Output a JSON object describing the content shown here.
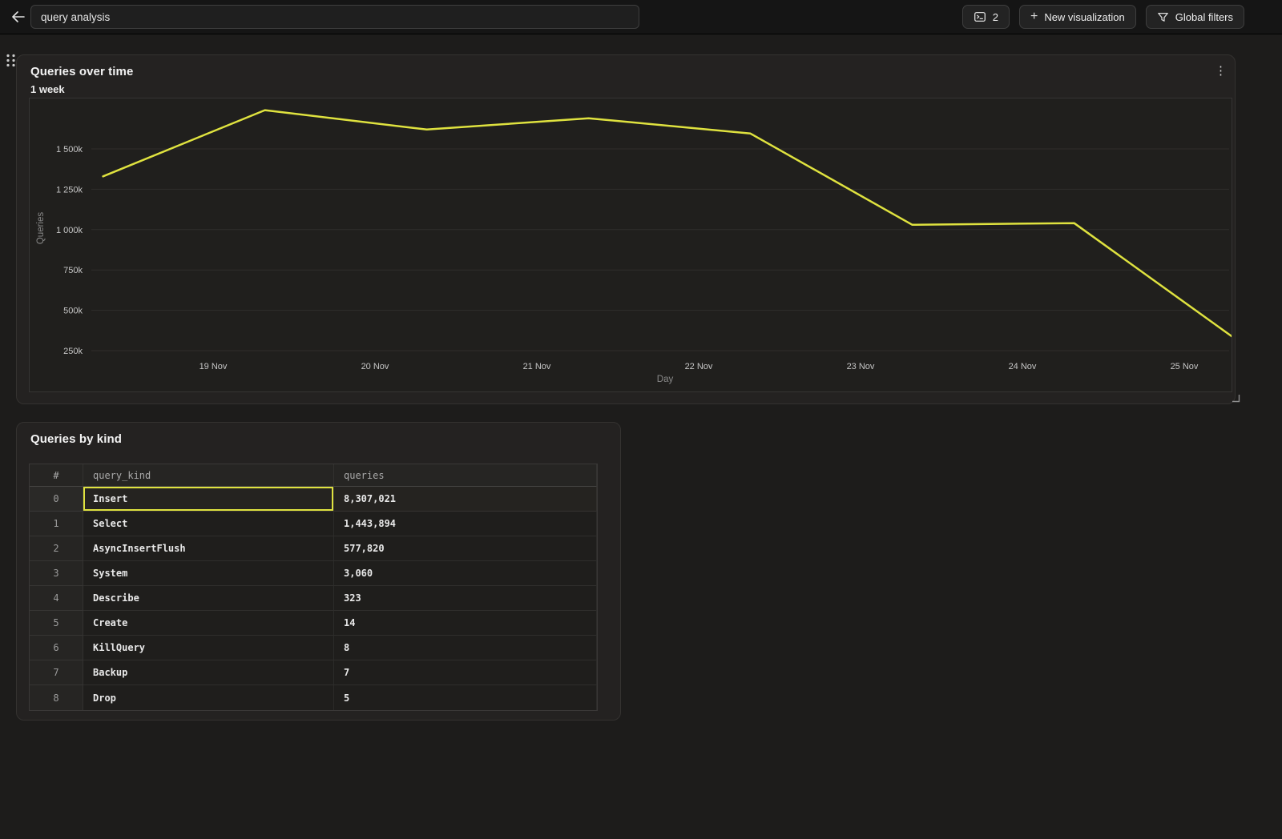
{
  "colors": {
    "accent": "#dfe23f",
    "line": "#dfe23f",
    "topbar_bg": "#151515",
    "card_bg": "#242221",
    "plot_bg": "#201f1d"
  },
  "topbar": {
    "title_value": "query analysis",
    "console_count": "2",
    "new_visualization_label": "New visualization",
    "global_filters_label": "Global filters"
  },
  "chart_card": {
    "title": "Queries over time",
    "subtitle": "1 week"
  },
  "chart_data": {
    "type": "line",
    "title": "Queries over time",
    "subtitle": "1 week",
    "xlabel": "Day",
    "ylabel": "Queries",
    "grid": true,
    "legend": false,
    "x_ticks": [
      "19 Nov",
      "20 Nov",
      "21 Nov",
      "22 Nov",
      "23 Nov",
      "24 Nov",
      "25 Nov"
    ],
    "y_ticks": [
      {
        "label": "1 500k",
        "value_k": 1500
      },
      {
        "label": "1 250k",
        "value_k": 1250
      },
      {
        "label": "1 000k",
        "value_k": 1000
      },
      {
        "label": "750k",
        "value_k": 750
      },
      {
        "label": "500k",
        "value_k": 500
      },
      {
        "label": "250k",
        "value_k": 250
      }
    ],
    "series": [
      {
        "name": "Queries",
        "color": "#dfe23f",
        "points": [
          {
            "day_offset_from_19nov": -0.68,
            "value_k": 1330
          },
          {
            "day_offset_from_19nov": 0.32,
            "value_k": 1740
          },
          {
            "day_offset_from_19nov": 1.32,
            "value_k": 1620
          },
          {
            "day_offset_from_19nov": 2.32,
            "value_k": 1690
          },
          {
            "day_offset_from_19nov": 3.32,
            "value_k": 1595
          },
          {
            "day_offset_from_19nov": 4.32,
            "value_k": 1030
          },
          {
            "day_offset_from_19nov": 5.32,
            "value_k": 1040
          },
          {
            "day_offset_from_19nov": 6.32,
            "value_k": 320
          }
        ]
      }
    ]
  },
  "table_card": {
    "title": "Queries by kind",
    "columns": [
      "#",
      "query_kind",
      "queries"
    ],
    "rows": [
      {
        "index": "0",
        "query_kind": "Insert",
        "queries": "8,307,021",
        "selected": true
      },
      {
        "index": "1",
        "query_kind": "Select",
        "queries": "1,443,894",
        "selected": false
      },
      {
        "index": "2",
        "query_kind": "AsyncInsertFlush",
        "queries": "577,820",
        "selected": false
      },
      {
        "index": "3",
        "query_kind": "System",
        "queries": "3,060",
        "selected": false
      },
      {
        "index": "4",
        "query_kind": "Describe",
        "queries": "323",
        "selected": false
      },
      {
        "index": "5",
        "query_kind": "Create",
        "queries": "14",
        "selected": false
      },
      {
        "index": "6",
        "query_kind": "KillQuery",
        "queries": "8",
        "selected": false
      },
      {
        "index": "7",
        "query_kind": "Backup",
        "queries": "7",
        "selected": false
      },
      {
        "index": "8",
        "query_kind": "Drop",
        "queries": "5",
        "selected": false
      }
    ]
  }
}
